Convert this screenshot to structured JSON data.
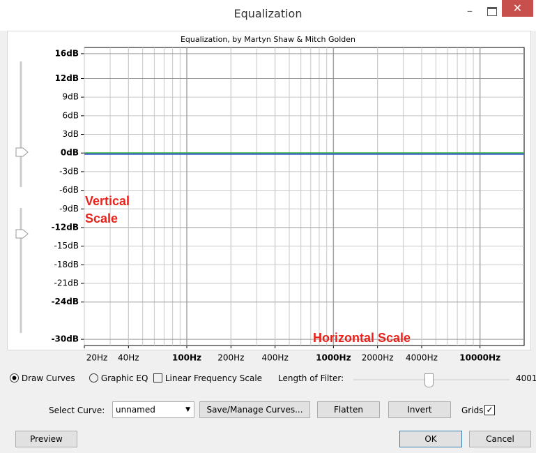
{
  "window": {
    "title": "Equalization",
    "subtitle": "Equalization, by Martyn Shaw & Mitch Golden"
  },
  "chart_data": {
    "type": "line",
    "xscale": "log",
    "grid": true,
    "x": [
      20,
      20000
    ],
    "xlim": [
      20,
      20000
    ],
    "ylim": [
      -31,
      17
    ],
    "xticks": [
      {
        "value": 20,
        "label": "20Hz"
      },
      {
        "value": 40,
        "label": "40Hz"
      },
      {
        "value": 100,
        "label": "100Hz",
        "emphasis": true
      },
      {
        "value": 200,
        "label": "200Hz"
      },
      {
        "value": 400,
        "label": "400Hz"
      },
      {
        "value": 1000,
        "label": "1000Hz",
        "emphasis": true
      },
      {
        "value": 2000,
        "label": "2000Hz"
      },
      {
        "value": 4000,
        "label": "4000Hz"
      },
      {
        "value": 10000,
        "label": "10000Hz",
        "emphasis": true
      }
    ],
    "yticks": [
      {
        "value": 16,
        "label": "16dB",
        "emphasis": true
      },
      {
        "value": 12,
        "label": "12dB",
        "emphasis": true
      },
      {
        "value": 9,
        "label": "9dB"
      },
      {
        "value": 6,
        "label": "6dB"
      },
      {
        "value": 3,
        "label": "3dB"
      },
      {
        "value": 0,
        "label": "0dB",
        "emphasis": true
      },
      {
        "value": -3,
        "label": "-3dB"
      },
      {
        "value": -6,
        "label": "-6dB"
      },
      {
        "value": -9,
        "label": "-9dB"
      },
      {
        "value": -12,
        "label": "-12dB",
        "emphasis": true
      },
      {
        "value": -15,
        "label": "-15dB"
      },
      {
        "value": -18,
        "label": "-18dB"
      },
      {
        "value": -21,
        "label": "-21dB"
      },
      {
        "value": -24,
        "label": "-24dB",
        "emphasis": true
      },
      {
        "value": -30,
        "label": "-30dB",
        "emphasis": true
      }
    ],
    "series": [
      {
        "color": "#3cb043",
        "values": [
          0,
          0
        ]
      },
      {
        "color": "#3a5fcd",
        "values": [
          0,
          0
        ]
      }
    ],
    "annotations": [
      "Vertical Scale",
      "Horizontal Scale"
    ]
  },
  "controls": {
    "draw_curves": "Draw Curves",
    "graphic_eq": "Graphic EQ",
    "linear_scale": "Linear Frequency Scale",
    "filter_length_label": "Length of Filter:",
    "filter_length_value": "4001",
    "select_curve_label": "Select Curve:",
    "select_curve_value": "unnamed",
    "save_manage": "Save/Manage Curves...",
    "flatten": "Flatten",
    "invert": "Invert",
    "grids": "Grids",
    "preview": "Preview",
    "ok": "OK",
    "cancel": "Cancel"
  }
}
